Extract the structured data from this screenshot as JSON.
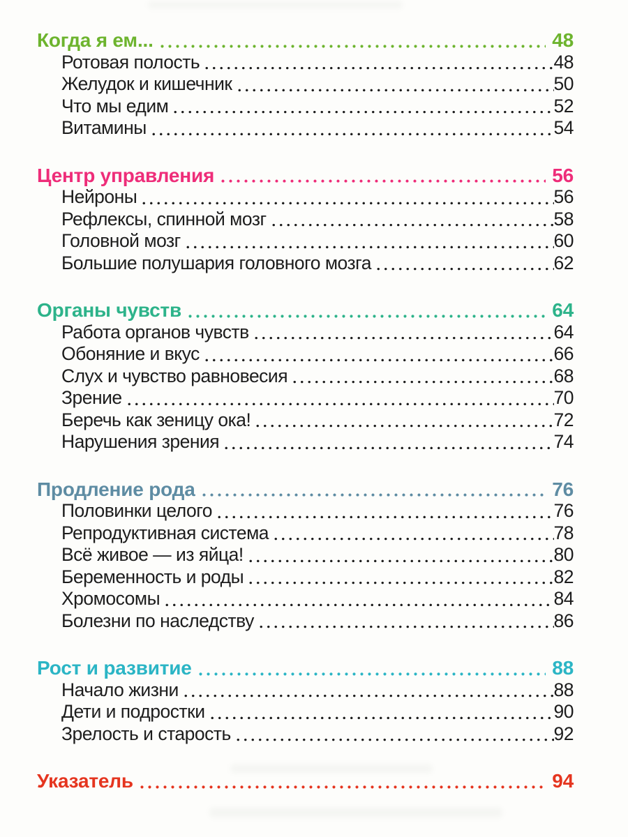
{
  "page": {
    "background": "#fdfdfb",
    "text_color": "#1d1d1d"
  },
  "toc": {
    "sections": [
      {
        "title": "Когда я ем...",
        "page": "48",
        "color": "#6db42e",
        "items": [
          {
            "label": "Ротовая полость",
            "page": "48"
          },
          {
            "label": "Желудок и кишечник",
            "page": "50"
          },
          {
            "label": "Что мы едим",
            "page": "52"
          },
          {
            "label": "Витамины",
            "page": "54"
          }
        ]
      },
      {
        "title": "Центр управления",
        "page": "56",
        "color": "#ee2d79",
        "items": [
          {
            "label": "Нейроны",
            "page": "56"
          },
          {
            "label": "Рефлексы, спинной мозг",
            "page": "58"
          },
          {
            "label": "Головной мозг",
            "page": "60"
          },
          {
            "label": "Большие полушария головного мозга",
            "page": "62"
          }
        ]
      },
      {
        "title": "Органы чувств",
        "page": "64",
        "color": "#2db38a",
        "items": [
          {
            "label": "Работа органов чувств",
            "page": "64"
          },
          {
            "label": "Обоняние и вкус",
            "page": "66"
          },
          {
            "label": "Слух и чувство равновесия",
            "page": "68"
          },
          {
            "label": "Зрение",
            "page": "70"
          },
          {
            "label": "Беречь как зеницу ока!",
            "page": "72"
          },
          {
            "label": "Нарушения зрения",
            "page": "74"
          }
        ]
      },
      {
        "title": "Продление рода",
        "page": "76",
        "color": "#5e8ca3",
        "items": [
          {
            "label": "Половинки целого",
            "page": "76"
          },
          {
            "label": "Репродуктивная система",
            "page": "78"
          },
          {
            "label": "Всё живое — из яйца!",
            "page": "80"
          },
          {
            "label": "Беременность и роды",
            "page": "82"
          },
          {
            "label": "Хромосомы",
            "page": "84"
          },
          {
            "label": "Болезни по наследству",
            "page": "86"
          }
        ]
      },
      {
        "title": "Рост и развитие",
        "page": "88",
        "color": "#2bb5c5",
        "items": [
          {
            "label": "Начало жизни",
            "page": "88"
          },
          {
            "label": "Дети и подростки",
            "page": "90"
          },
          {
            "label": "Зрелость и старость",
            "page": "92"
          }
        ]
      },
      {
        "title": "Указатель",
        "page": "94",
        "color": "#e5351f",
        "items": []
      }
    ]
  }
}
